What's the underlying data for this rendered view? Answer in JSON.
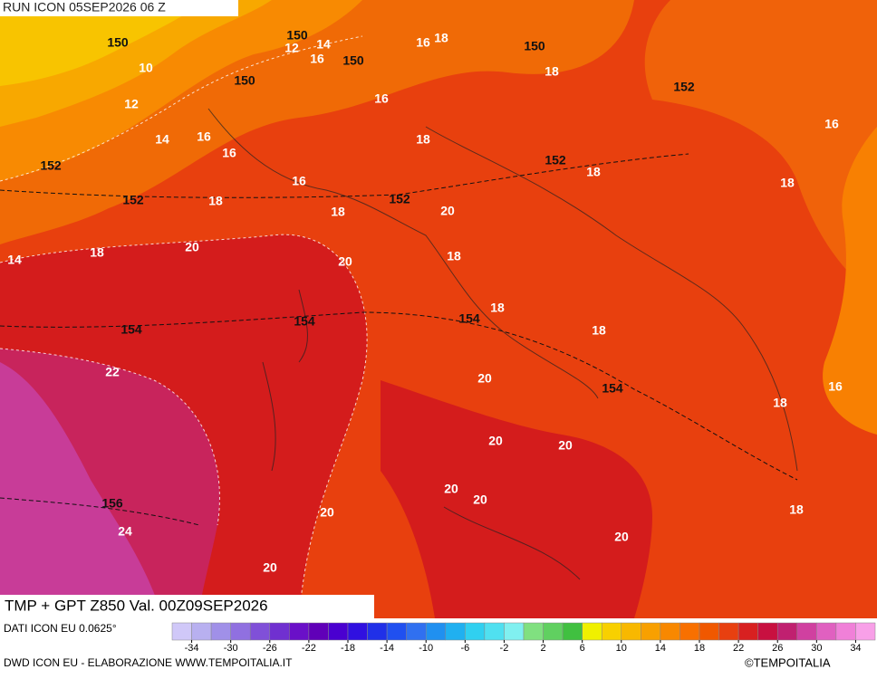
{
  "header": "RUN ICON 05SEP2026 06 Z",
  "title": "TMP + GPT Z850 Val. 00Z09SEP2026",
  "source": "DATI ICON EU 0.0625°",
  "footer": "DWD ICON EU - ELABORAZIONE WWW.TEMPOITALIA.IT",
  "copyright": "©TEMPOITALIA",
  "geopotential_labels": [
    150,
    150,
    150,
    150,
    150,
    152,
    152,
    152,
    152,
    152,
    154,
    154,
    154,
    154,
    156
  ],
  "temperature_labels": [
    10,
    12,
    12,
    14,
    16,
    16,
    18,
    14,
    16,
    16,
    16,
    18,
    18,
    16,
    18,
    18,
    16,
    18,
    18,
    20,
    20,
    18,
    14,
    20,
    18,
    18,
    18,
    22,
    20,
    18,
    16,
    20,
    20,
    20,
    20,
    20,
    18,
    24,
    20,
    20
  ],
  "colorbar": {
    "lim": [
      -36,
      36
    ],
    "ticks": [
      -34,
      -30,
      -26,
      -22,
      -18,
      -14,
      -10,
      -6,
      -2,
      2,
      6,
      10,
      14,
      18,
      22,
      26,
      30,
      34
    ],
    "colors": [
      "#d0c8f8",
      "#b8b0f0",
      "#a090e8",
      "#9070e0",
      "#8050d8",
      "#7030d0",
      "#6a10c8",
      "#6000b8",
      "#4a00d0",
      "#3010e0",
      "#2030e8",
      "#2050f0",
      "#3070f0",
      "#2090f0",
      "#20b0f0",
      "#30d0f0",
      "#50e0f0",
      "#80f0f0",
      "#80e080",
      "#60d060",
      "#40c040",
      "#f0f000",
      "#f8d000",
      "#f8b800",
      "#f8a000",
      "#f88800",
      "#f87000",
      "#f05800",
      "#e84010",
      "#d82020",
      "#c81040",
      "#c02070",
      "#d040a0",
      "#e060c0",
      "#f080d8",
      "#f8a0e8"
    ]
  }
}
